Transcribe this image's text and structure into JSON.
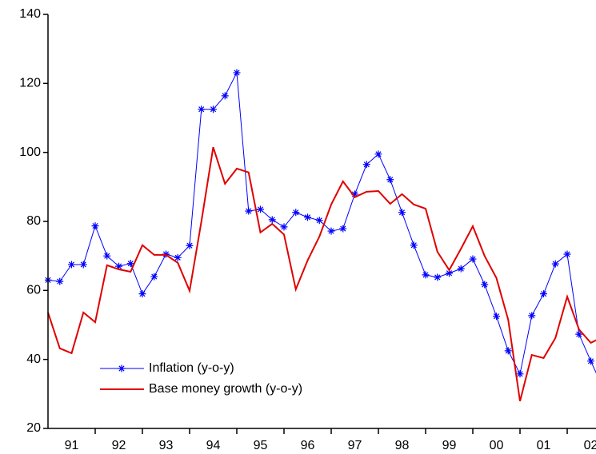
{
  "chart_data": {
    "type": "line",
    "x": [
      1991,
      1991.25,
      1991.5,
      1991.75,
      1992,
      1992.25,
      1992.5,
      1992.75,
      1993,
      1993.25,
      1993.5,
      1993.75,
      1994,
      1994.25,
      1994.5,
      1994.75,
      1995,
      1995.25,
      1995.5,
      1995.75,
      1996,
      1996.25,
      1996.5,
      1996.75,
      1997,
      1997.25,
      1997.5,
      1997.75,
      1998,
      1998.25,
      1998.5,
      1998.75,
      1999,
      1999.25,
      1999.5,
      1999.75,
      2000,
      2000.25,
      2000.5,
      2000.75,
      2001,
      2001.25,
      2001.5,
      2001.75,
      2002,
      2002.25,
      2002.5,
      2002.75
    ],
    "series": [
      {
        "name": "Inflation (y-o-y)",
        "color": "#0000ff",
        "marker": "star",
        "values": [
          63,
          62.6,
          67.5,
          67.5,
          78.7,
          70,
          67,
          67.8,
          59,
          64,
          70.5,
          69.5,
          73,
          112.5,
          112.5,
          116.4,
          123.1,
          83,
          83.5,
          80.5,
          78.4,
          82.6,
          81.2,
          80.3,
          77.2,
          77.9,
          87.9,
          96.5,
          99.5,
          92.1,
          82.6,
          73.1,
          64.5,
          63.8,
          65,
          66.3,
          69.1,
          61.7,
          52.5,
          42.5,
          35.8,
          52.7,
          59,
          67.7,
          70.5,
          47.3,
          39.5,
          32
        ]
      },
      {
        "name": "Base money growth (y-o-y)",
        "color": "#e00000",
        "values": [
          53.6,
          43.2,
          41.8,
          53.6,
          50.8,
          67.3,
          66.1,
          65.4,
          73.1,
          70.3,
          70.3,
          68,
          59.9,
          80,
          101.5,
          90.9,
          95.3,
          94.2,
          76.8,
          79.3,
          76.2,
          60.3,
          68.7,
          75.6,
          84.9,
          91.6,
          87,
          88.6,
          88.8,
          85.1,
          87.9,
          84.9,
          83.7,
          71.2,
          65.9,
          72.1,
          78.6,
          70,
          63.6,
          51.5,
          27.9,
          41.3,
          40.4,
          46.2,
          58.2,
          48.7,
          44.8,
          46.5
        ]
      }
    ],
    "xlim": [
      1991,
      2002.61
    ],
    "xticks": [
      {
        "value": 1991.5,
        "label": "91"
      },
      {
        "value": 1992.5,
        "label": "92"
      },
      {
        "value": 1993.5,
        "label": "93"
      },
      {
        "value": 1994.5,
        "label": "94"
      },
      {
        "value": 1995.5,
        "label": "95"
      },
      {
        "value": 1996.5,
        "label": "96"
      },
      {
        "value": 1997.5,
        "label": "97"
      },
      {
        "value": 1998.5,
        "label": "98"
      },
      {
        "value": 1999.5,
        "label": "99"
      },
      {
        "value": 2000.5,
        "label": "00"
      },
      {
        "value": 2001.5,
        "label": "01"
      },
      {
        "value": 2002.5,
        "label": "02"
      }
    ],
    "ylim": [
      20,
      140
    ],
    "yticks": [
      20,
      40,
      60,
      80,
      100,
      120,
      140
    ],
    "grid": false,
    "legend": "lower-left"
  }
}
